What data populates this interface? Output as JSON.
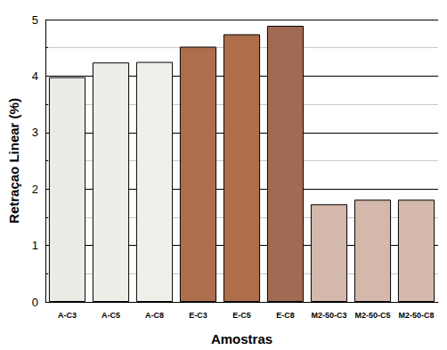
{
  "chart_data": {
    "type": "bar",
    "x_label": "Amostras",
    "y_label": "Retraçao Linear (%)",
    "categories": [
      "A-C3",
      "A-C5",
      "A-C8",
      "E-C3",
      "E-C5",
      "E-C8",
      "M2-50-C3",
      "M2-50-C5",
      "M2-50-C8"
    ],
    "values": [
      3.98,
      4.24,
      4.25,
      4.52,
      4.74,
      4.89,
      1.73,
      1.81,
      1.81
    ],
    "colors": [
      "#ecebe6",
      "#efede8",
      "#f0efea",
      "#ad6e4b",
      "#ae6e49",
      "#a16a53",
      "#d3b8ab",
      "#d3b8ab",
      "#d4b9ac"
    ],
    "ylim": [
      0,
      5
    ],
    "yticks": [
      0,
      1,
      2,
      3,
      4,
      5
    ],
    "grid": true
  }
}
